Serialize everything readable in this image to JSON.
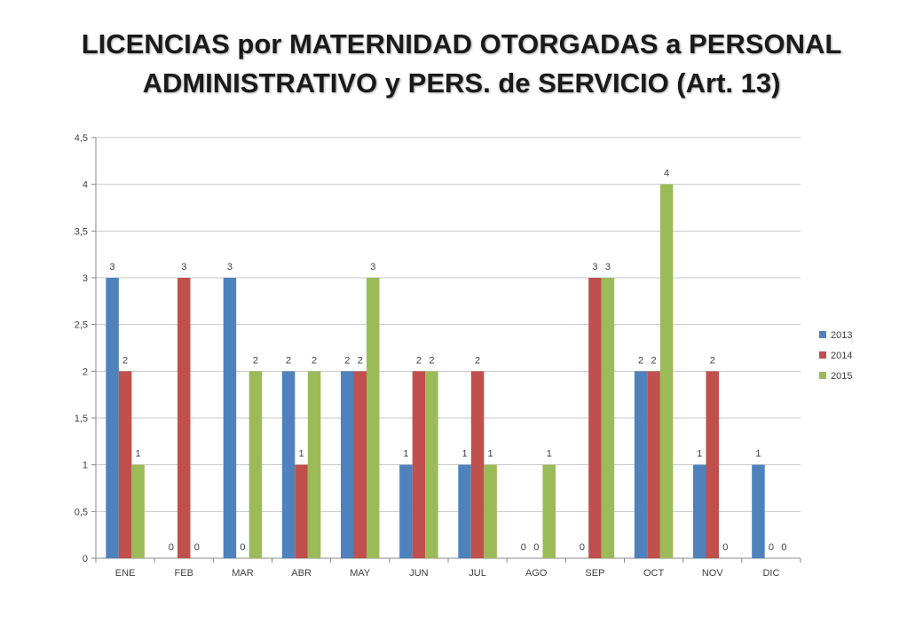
{
  "title_line1": "LICENCIAS por MATERNIDAD OTORGADAS a PERSONAL",
  "title_line2": "ADMINISTRATIVO y PERS. de SERVICIO (Art. 13)",
  "chart_data": {
    "type": "bar",
    "categories": [
      "ENE",
      "FEB",
      "MAR",
      "ABR",
      "MAY",
      "JUN",
      "JUL",
      "AGO",
      "SEP",
      "OCT",
      "NOV",
      "DIC"
    ],
    "series": [
      {
        "name": "2013",
        "color": "#4f81bd",
        "values": [
          3,
          0,
          3,
          2,
          2,
          1,
          1,
          0,
          0,
          2,
          1,
          1
        ]
      },
      {
        "name": "2014",
        "color": "#c0504d",
        "values": [
          2,
          3,
          0,
          1,
          2,
          2,
          2,
          0,
          3,
          2,
          2,
          0
        ]
      },
      {
        "name": "2015",
        "color": "#9bbb59",
        "values": [
          1,
          0,
          2,
          2,
          3,
          2,
          1,
          1,
          3,
          4,
          0,
          0
        ]
      }
    ],
    "ylim": [
      0,
      4.5
    ],
    "yticks": [
      "0",
      "0,5",
      "1",
      "1,5",
      "2",
      "2,5",
      "3",
      "3,5",
      "4",
      "4,5"
    ],
    "grid": true,
    "legend_position": "right",
    "data_labels": true
  }
}
